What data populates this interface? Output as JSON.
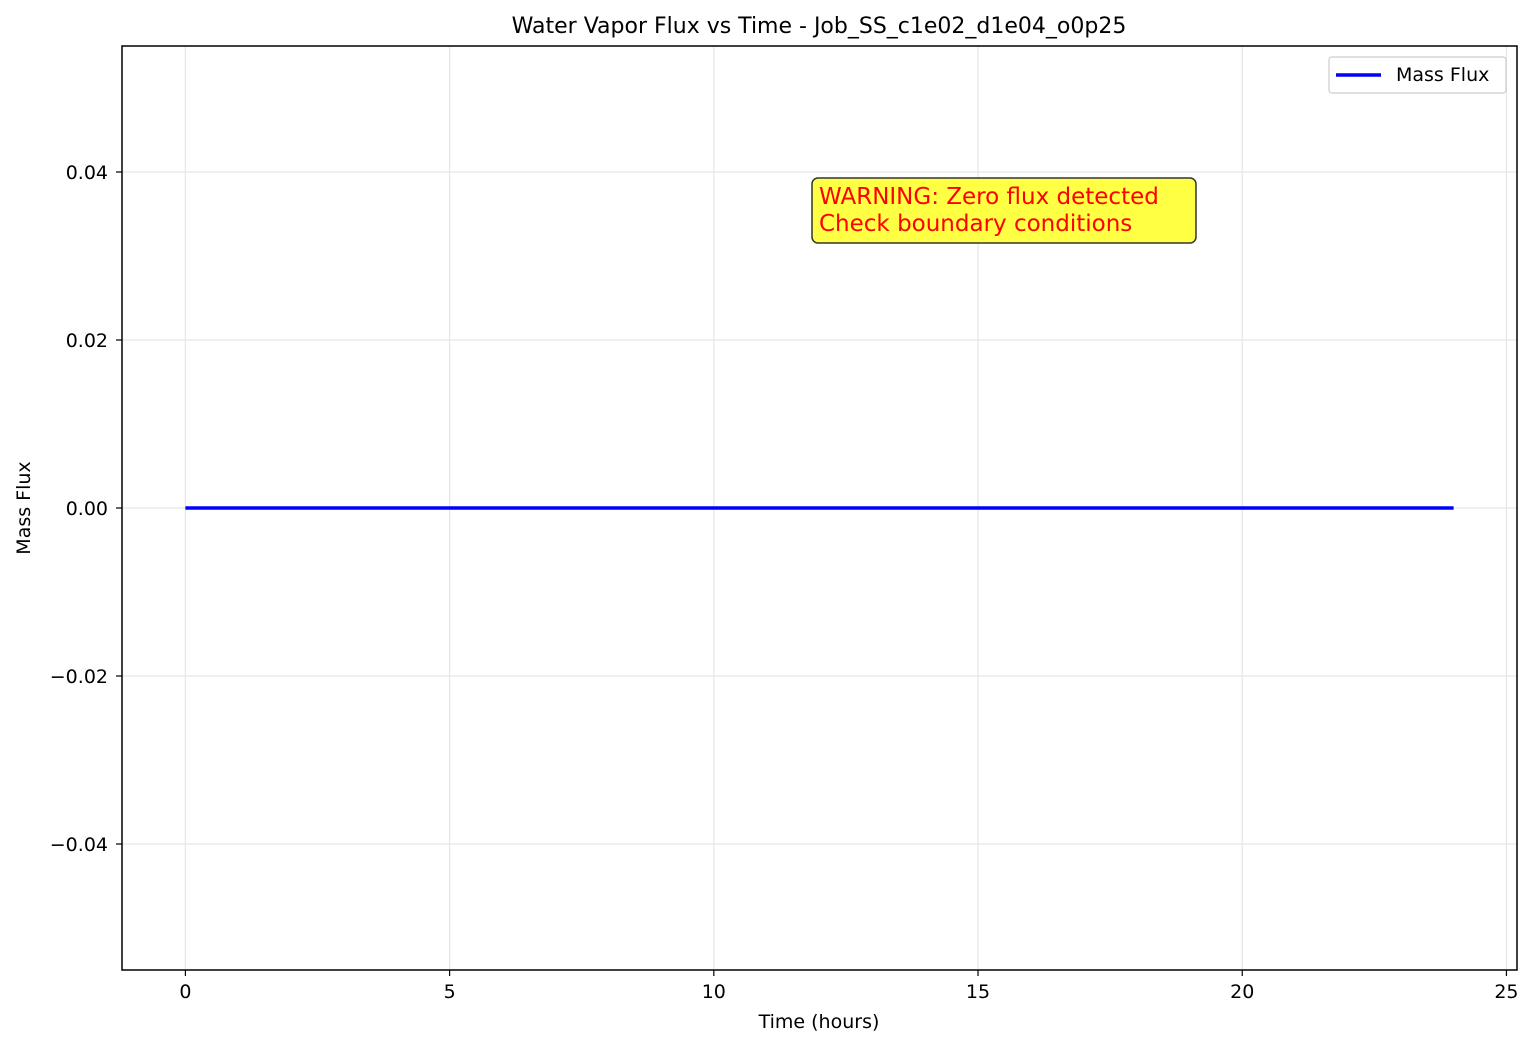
{
  "chart_data": {
    "type": "line",
    "title": "Water Vapor Flux vs Time - Job_SS_c1e02_d1e04_o0p25",
    "xlabel": "Time (hours)",
    "ylabel": "Mass Flux",
    "xlim": [
      -1.2,
      25.2
    ],
    "ylim": [
      -0.055,
      0.055
    ],
    "x_ticks": [
      0,
      5,
      10,
      15,
      20,
      25
    ],
    "x_tick_labels": [
      "0",
      "5",
      "10",
      "15",
      "20",
      "25"
    ],
    "y_ticks": [
      0.04,
      0.02,
      0.0,
      -0.02,
      -0.04
    ],
    "y_tick_labels": [
      "0.04",
      "0.02",
      "0.00",
      "−0.02",
      "−0.04"
    ],
    "grid": true,
    "legend_position": "top-right",
    "series": [
      {
        "name": "Mass Flux",
        "color": "#0000ff",
        "x": [
          0,
          24
        ],
        "y": [
          0,
          0
        ]
      }
    ],
    "annotation": {
      "lines": [
        "WARNING: Zero flux detected",
        "Check boundary conditions"
      ],
      "text_color": "#ff0000",
      "background": "#ffff44",
      "anchor_x": 12,
      "anchor_y": 0.035
    }
  }
}
